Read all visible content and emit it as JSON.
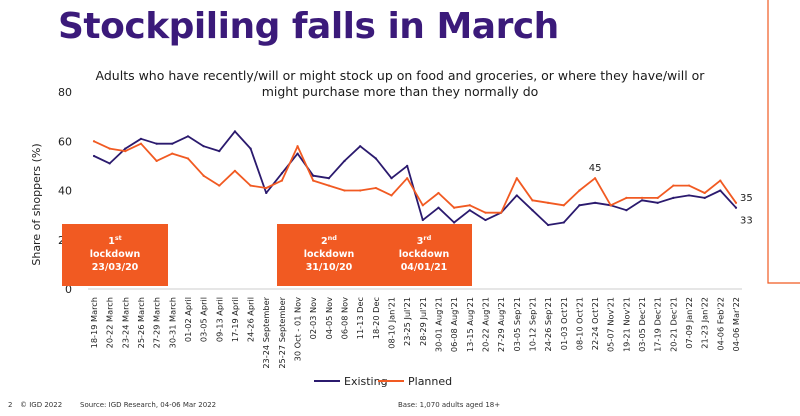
{
  "title": "Stockpiling falls in March",
  "footer": {
    "page": "2",
    "copyright": "© IGD 2022",
    "source": "Source: IGD Research, 04-06 Mar 2022",
    "base": "Base: 1,070 adults aged 18+"
  },
  "colors": {
    "title": "#3b1a7a",
    "existing": "#2b1a6e",
    "planned": "#f15a22",
    "lockdown_box": "#f15a22",
    "accent_line": "#f15a22"
  },
  "chart_data": {
    "type": "line",
    "title": "Adults who have recently/will or might stock up on food and groceries, or where they have/will or might purchase more than they normally do",
    "ylabel": "Share of shoppers (%)",
    "xlabel": "",
    "ylim": [
      0,
      80
    ],
    "yticks": [
      0,
      20,
      40,
      60,
      80
    ],
    "grid": false,
    "legend_position": "bottom",
    "categories": [
      "18-19 March",
      "20-22 March",
      "23-24 March",
      "25-26 March",
      "27-29 March",
      "30-31 March",
      "01-02 April",
      "03-05 April",
      "09-13 April",
      "17-19 April",
      "24-26 April",
      "23-24 September",
      "25-27 September",
      "30 Oct - 01 Nov",
      "02-03 Nov",
      "04-05 Nov",
      "06-08 Nov",
      "11-13 Dec",
      "18-20 Dec",
      "08-10 Jan'21",
      "23-25 Jul'21",
      "28-29 Jul'21",
      "30-01 Aug'21",
      "06-08 Aug'21",
      "13-15 Aug'21",
      "20-22 Aug'21",
      "27-29 Aug'21",
      "03-05 Sep'21",
      "10-12 Sep'21",
      "24-26 Sep'21",
      "01-03 Oct'21",
      "08-10 Oct'21",
      "22-24 Oct'21",
      "05-07 Nov'21",
      "19-21 Nov'21",
      "03-05 Dec'21",
      "17-19 Dec'21",
      "20-21 Dec'21",
      "07-09 Jan'22",
      "21-23 Jan'22",
      "04-06 Feb'22",
      "04-06 Mar'22"
    ],
    "series": [
      {
        "name": "Existing",
        "color": "#2b1a6e",
        "values": [
          54,
          51,
          57,
          61,
          59,
          59,
          62,
          58,
          56,
          64,
          57,
          39,
          47,
          55,
          46,
          45,
          52,
          58,
          53,
          45,
          50,
          28,
          33,
          27,
          32,
          28,
          31,
          38,
          32,
          26,
          27,
          34,
          35,
          34,
          32,
          36,
          35,
          37,
          38,
          37,
          40,
          33
        ]
      },
      {
        "name": "Planned",
        "color": "#f15a22",
        "values": [
          60,
          57,
          56,
          59,
          52,
          55,
          53,
          46,
          42,
          48,
          42,
          41,
          44,
          58,
          44,
          42,
          40,
          40,
          41,
          38,
          45,
          34,
          39,
          33,
          34,
          31,
          31,
          45,
          36,
          35,
          34,
          40,
          45,
          34,
          37,
          37,
          37,
          42,
          42,
          39,
          44,
          35
        ]
      }
    ],
    "point_labels": [
      {
        "series": "Planned",
        "index": 32,
        "text": "45"
      },
      {
        "series": "Planned",
        "index": 41,
        "text": "35"
      },
      {
        "series": "Existing",
        "index": 41,
        "text": "33"
      }
    ],
    "annotations": [
      {
        "id": "first",
        "number": "1",
        "suffix": "st",
        "word": "lockdown",
        "date": "23/03/20"
      },
      {
        "id": "second",
        "number": "2",
        "suffix": "nd",
        "word": "lockdown",
        "date": "31/10/20"
      },
      {
        "id": "third",
        "number": "3",
        "suffix": "rd",
        "word": "lockdown",
        "date": "04/01/21"
      }
    ]
  }
}
